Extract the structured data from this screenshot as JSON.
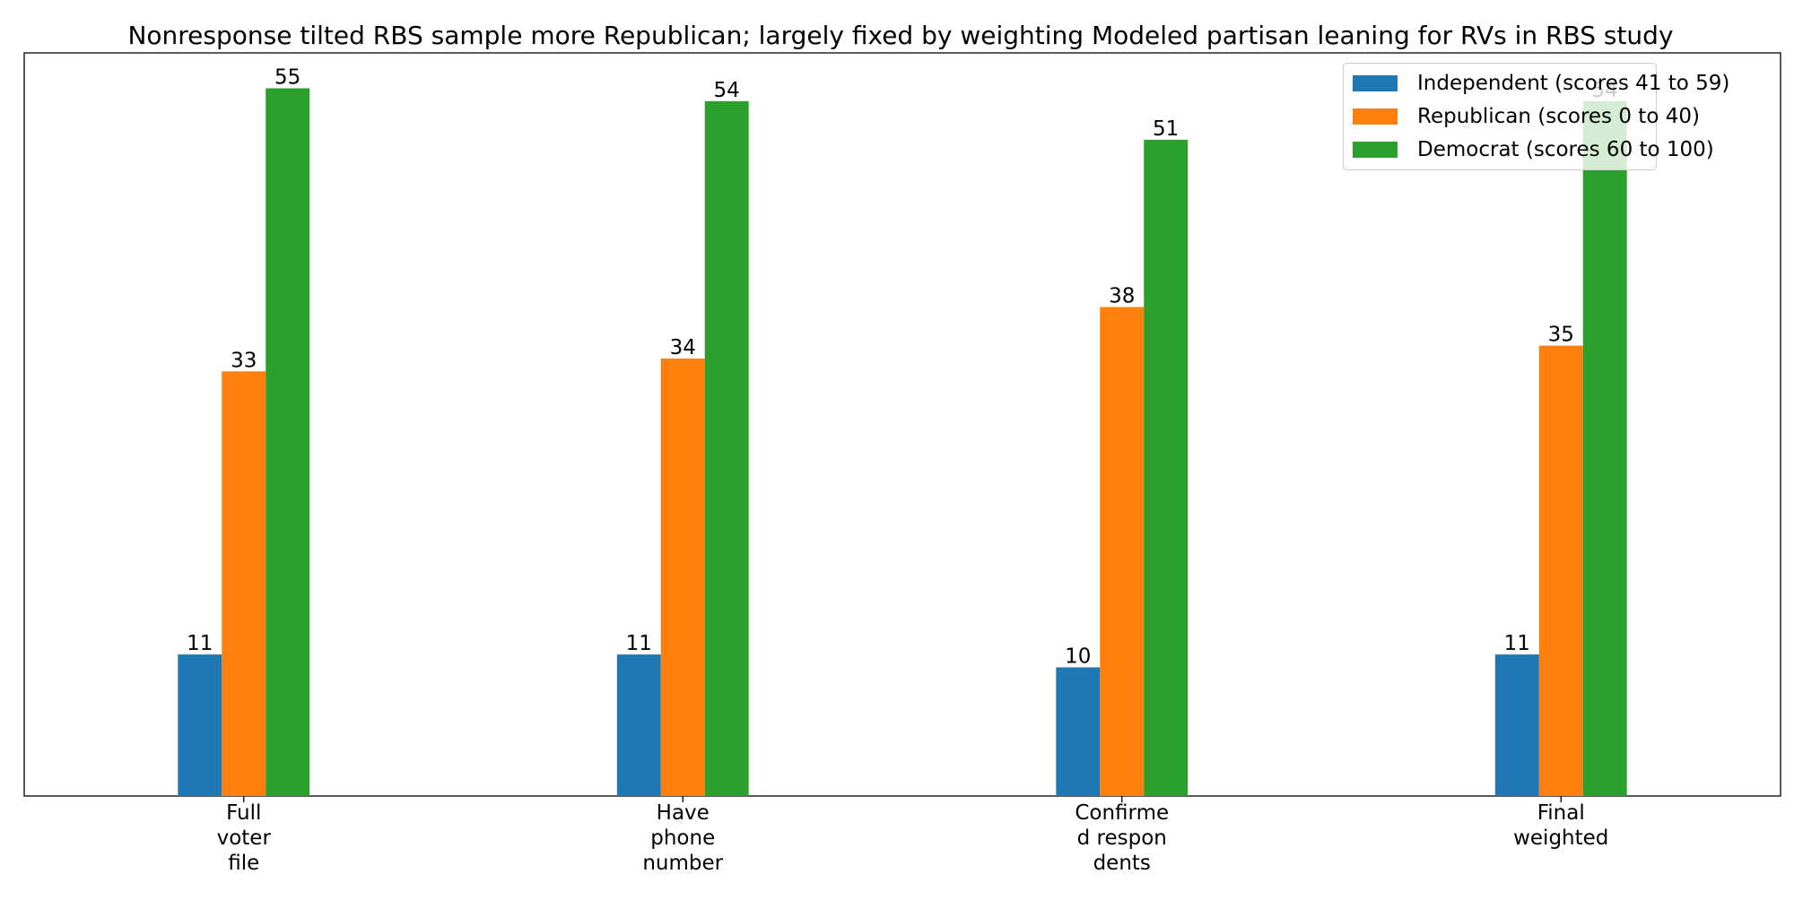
{
  "chart_data": {
    "type": "bar",
    "title": "Nonresponse tilted RBS sample more Republican; largely fixed by weighting Modeled partisan leaning for RVs in RBS study",
    "xlabel": "",
    "ylabel": "",
    "categories": [
      "Full voter file",
      "Have phone number",
      "Confirmed respondents",
      "Final weighted"
    ],
    "category_lines": [
      [
        "Full",
        "voter",
        "file"
      ],
      [
        "Have",
        "phone",
        "number"
      ],
      [
        "Confirme",
        "d respon",
        "dents"
      ],
      [
        "Final",
        "weighted"
      ]
    ],
    "series": [
      {
        "name": "Independent (scores 41 to 59)",
        "color": "#1f77b4",
        "values": [
          11,
          11,
          10,
          11
        ]
      },
      {
        "name": "Republican (scores 0 to 40)",
        "color": "#ff7f0e",
        "values": [
          33,
          34,
          38,
          35
        ]
      },
      {
        "name": "Democrat (scores 60 to 100)",
        "color": "#2ca02c",
        "values": [
          55,
          54,
          51,
          54
        ]
      }
    ],
    "ylim": [
      0,
      57.75
    ],
    "grid": false,
    "legend_position": "top-right",
    "y_ticks_visible": false
  }
}
